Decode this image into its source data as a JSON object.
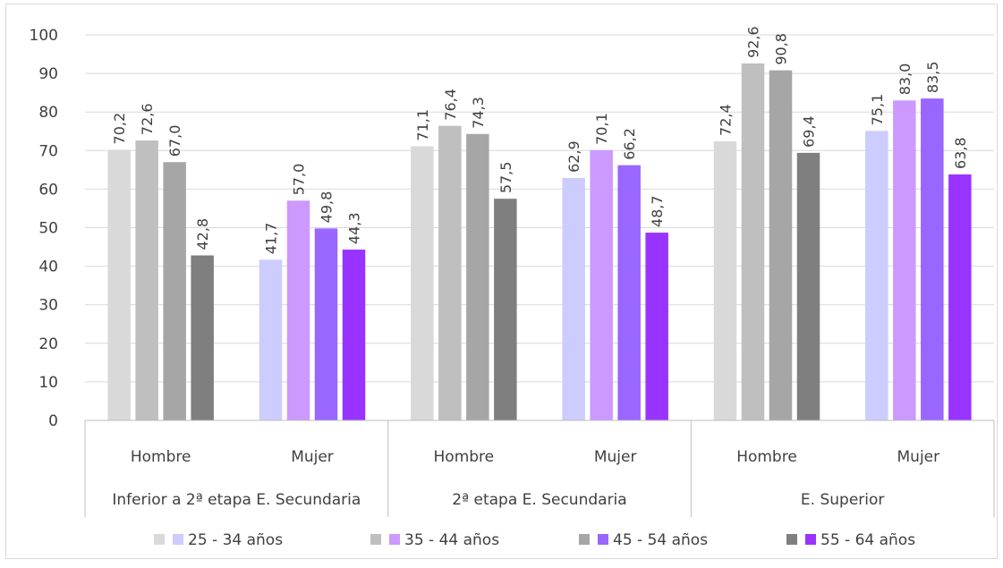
{
  "chart_data": {
    "type": "bar",
    "title": "",
    "xlabel": "",
    "ylabel": "",
    "ylim": [
      0,
      100
    ],
    "yticks": [
      0,
      10,
      20,
      30,
      40,
      50,
      60,
      70,
      80,
      90,
      100
    ],
    "grid": true,
    "legend_position": "bottom",
    "groups": [
      {
        "label": "Inferior a 2ª etapa E. Secundaria",
        "subgroups": [
          {
            "label": "Hombre",
            "palette": "gray",
            "values": [
              70.2,
              72.6,
              67.0,
              42.8
            ],
            "value_labels": [
              "70,2",
              "72,6",
              "67,0",
              "42,8"
            ]
          },
          {
            "label": "Mujer",
            "palette": "purple",
            "values": [
              41.7,
              57.0,
              49.8,
              44.3
            ],
            "value_labels": [
              "41,7",
              "57,0",
              "49,8",
              "44,3"
            ]
          }
        ]
      },
      {
        "label": "2ª etapa E. Secundaria",
        "subgroups": [
          {
            "label": "Hombre",
            "palette": "gray",
            "values": [
              71.1,
              76.4,
              74.3,
              57.5
            ],
            "value_labels": [
              "71,1",
              "76,4",
              "74,3",
              "57,5"
            ]
          },
          {
            "label": "Mujer",
            "palette": "purple",
            "values": [
              62.9,
              70.1,
              66.2,
              48.7
            ],
            "value_labels": [
              "62,9",
              "70,1",
              "66,2",
              "48,7"
            ]
          }
        ]
      },
      {
        "label": "E. Superior",
        "subgroups": [
          {
            "label": "Hombre",
            "palette": "gray",
            "values": [
              72.4,
              92.6,
              90.8,
              69.4
            ],
            "value_labels": [
              "72,4",
              "92,6",
              "90,8",
              "69,4"
            ]
          },
          {
            "label": "Mujer",
            "palette": "purple",
            "values": [
              75.1,
              83.0,
              83.5,
              63.8
            ],
            "value_labels": [
              "75,1",
              "83,0",
              "83,5",
              "63,8"
            ]
          }
        ]
      }
    ],
    "series": [
      {
        "name": "25 - 34 años",
        "gray_color": "#d9d9d9",
        "purple_color": "#ccccff"
      },
      {
        "name": "35 - 44 años",
        "gray_color": "#bfbfbf",
        "purple_color": "#cc99ff"
      },
      {
        "name": "45 - 54 años",
        "gray_color": "#a6a6a6",
        "purple_color": "#9966ff"
      },
      {
        "name": "55 - 64 años",
        "gray_color": "#7f7f7f",
        "purple_color": "#9933ff"
      }
    ]
  },
  "colors": {
    "gridline": "#d9d9d9",
    "axis": "#bfbfbf",
    "text": "#404040"
  }
}
